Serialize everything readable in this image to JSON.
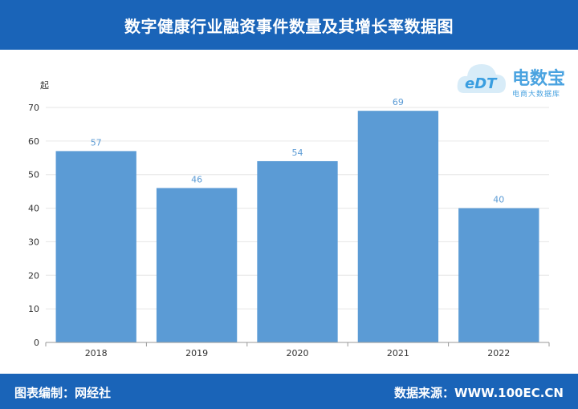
{
  "header": {
    "title": "数字健康行业融资事件数量及其增长率数据图"
  },
  "footer": {
    "left": "图表编制：网经社",
    "right": "数据来源：WWW.100EC.CN"
  },
  "logo": {
    "name": "电数宝",
    "subtitle": "电商大数据库",
    "mark": "eDT"
  },
  "colors": {
    "bar": "#5b9bd5",
    "label": "#5b9bd5",
    "header": "#1a64b8"
  },
  "chart_data": {
    "type": "bar",
    "title": "数字健康行业融资事件数量及其增长率数据图",
    "ylabel": "起",
    "xlabel": "",
    "categories": [
      "2018",
      "2019",
      "2020",
      "2021",
      "2022"
    ],
    "values": [
      57,
      46,
      54,
      69,
      40
    ],
    "ylim": [
      0,
      70
    ],
    "yticks": [
      0,
      10,
      20,
      30,
      40,
      50,
      60,
      70
    ],
    "grid": true,
    "legend": "none"
  }
}
